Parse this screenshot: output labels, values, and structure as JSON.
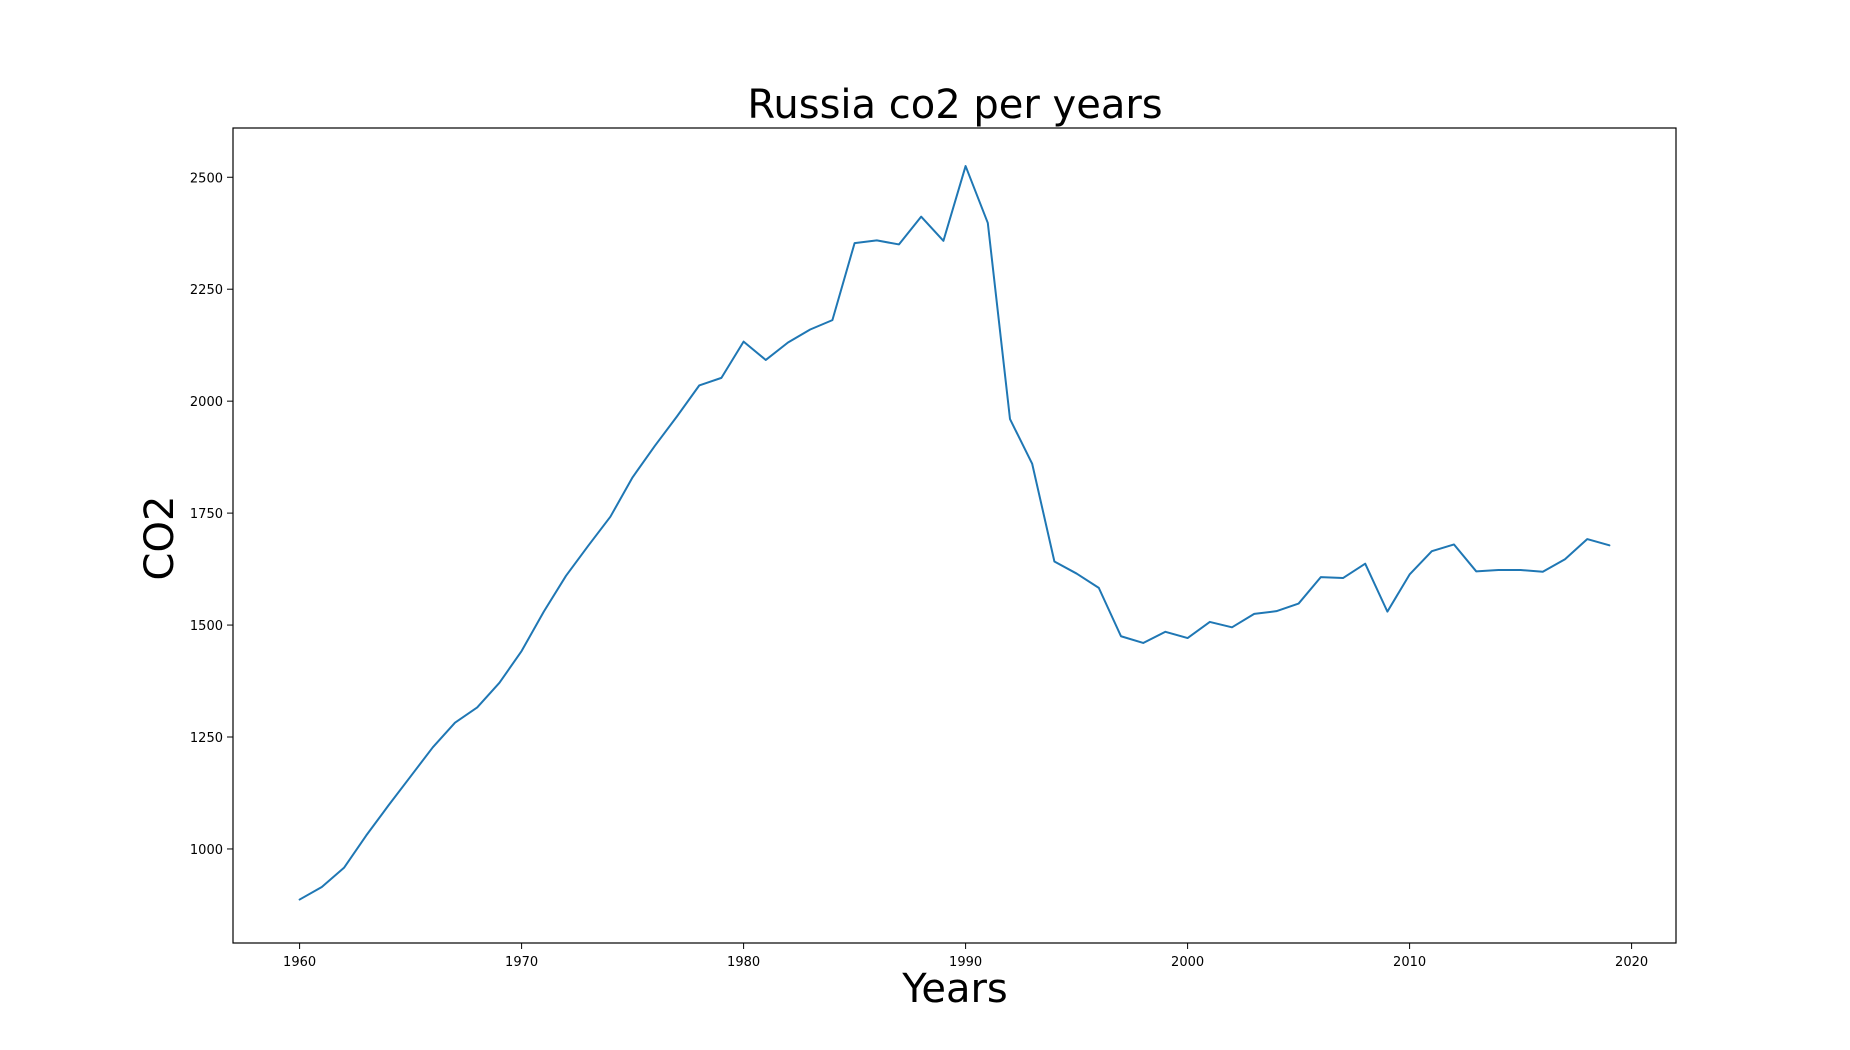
{
  "chart_data": {
    "type": "line",
    "title": "Russia co2 per years",
    "xlabel": "Years",
    "ylabel": "CO2",
    "xlim": [
      1957,
      2022
    ],
    "ylim": [
      790,
      2610
    ],
    "grid": false,
    "legend": "none",
    "x_ticks": [
      1960,
      1970,
      1980,
      1990,
      2000,
      2010,
      2020
    ],
    "y_ticks": [
      1000,
      1250,
      1500,
      1750,
      2000,
      2250,
      2500
    ],
    "series": [
      {
        "color": "#1f77b4",
        "x": [
          1960,
          1961,
          1962,
          1963,
          1964,
          1965,
          1966,
          1967,
          1968,
          1969,
          1970,
          1971,
          1972,
          1973,
          1974,
          1975,
          1976,
          1977,
          1978,
          1979,
          1980,
          1981,
          1982,
          1983,
          1984,
          1985,
          1986,
          1987,
          1988,
          1989,
          1990,
          1991,
          1992,
          1993,
          1994,
          1995,
          1996,
          1997,
          1998,
          1999,
          2000,
          2001,
          2002,
          2003,
          2004,
          2005,
          2006,
          2007,
          2008,
          2009,
          2010,
          2011,
          2012,
          2013,
          2014,
          2015,
          2016,
          2017,
          2018,
          2019
        ],
        "y": [
          887,
          915,
          958,
          1030,
          1097,
          1162,
          1227,
          1282,
          1316,
          1371,
          1442,
          1530,
          1610,
          1677,
          1742,
          1830,
          1900,
          1966,
          2035,
          2052,
          2133,
          2092,
          2131,
          2160,
          2181,
          2353,
          2359,
          2350,
          2412,
          2358,
          2525,
          2398,
          1960,
          1860,
          1642,
          1615,
          1583,
          1475,
          1460,
          1485,
          1471,
          1507,
          1495,
          1525,
          1531,
          1548,
          1607,
          1605,
          1637,
          1530,
          1613,
          1665,
          1680,
          1620,
          1623,
          1623,
          1619,
          1647,
          1692,
          1678
        ]
      }
    ]
  }
}
